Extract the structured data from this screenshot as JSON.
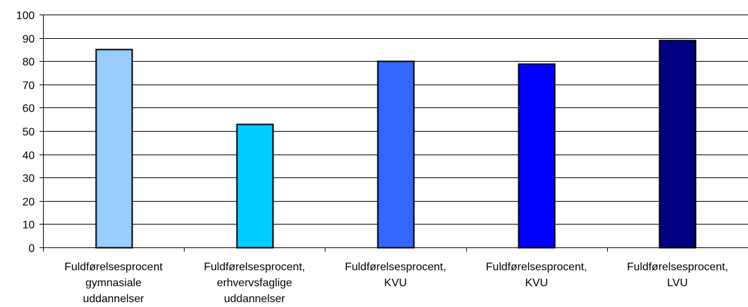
{
  "chart_data": {
    "type": "bar",
    "title": "",
    "xlabel": "",
    "ylabel": "",
    "ylim": [
      0,
      100
    ],
    "ytick_step": 10,
    "grid": true,
    "legend": "none",
    "categories": [
      [
        "Fuldførelsesprocent",
        "gymnasiale",
        "uddannelser"
      ],
      [
        "Fuldførelsesprocent,",
        "erhvervsfaglige",
        "uddannelser"
      ],
      [
        "Fuldførelsesprocent,",
        "KVU"
      ],
      [
        "Fuldførelsesprocent,",
        "KVU"
      ],
      [
        "Fuldførelsesprocent,",
        "LVU"
      ]
    ],
    "values": [
      85,
      53,
      80,
      79,
      89
    ],
    "colors": [
      "#99ccff",
      "#00ccff",
      "#3366ff",
      "#0000ff",
      "#000080"
    ]
  }
}
